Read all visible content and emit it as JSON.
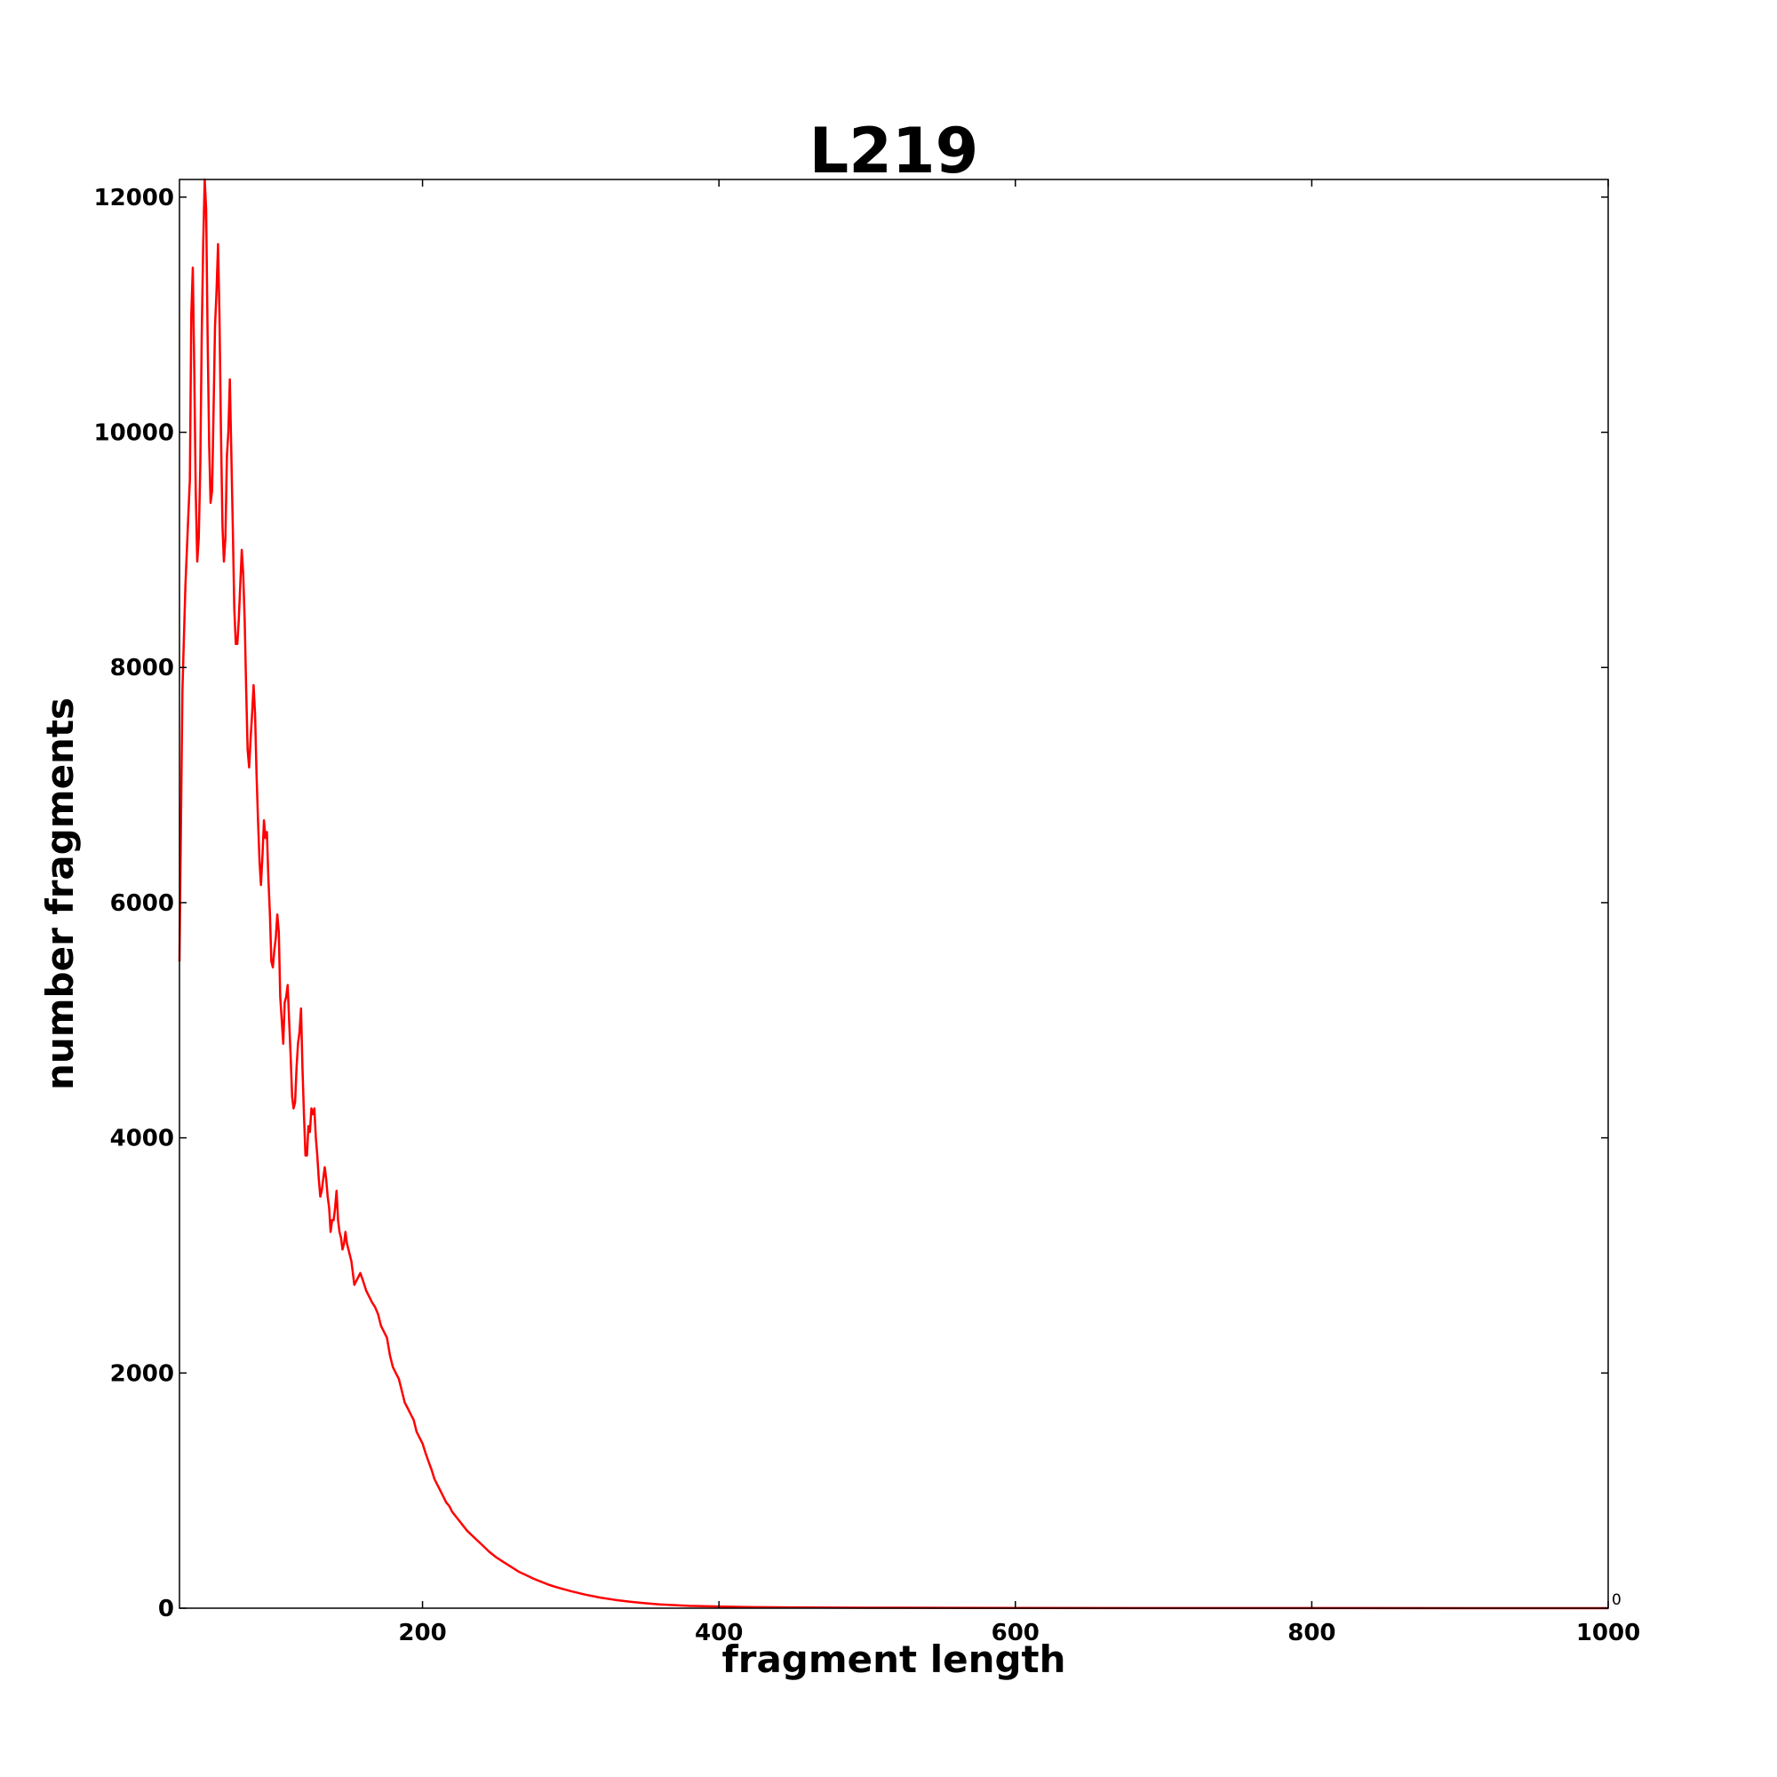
{
  "chart_data": {
    "type": "line",
    "title": "L219",
    "xlabel": "fragment length",
    "ylabel": "number fragments",
    "xlim": [
      36,
      1000
    ],
    "ylim": [
      0,
      12150
    ],
    "xticks": [
      200,
      400,
      600,
      800,
      1000
    ],
    "yticks": [
      0,
      2000,
      4000,
      6000,
      8000,
      10000,
      12000
    ],
    "axis_offset_label": "0",
    "grid": false,
    "legend": "none",
    "series": [
      {
        "color": "#ff0000",
        "points": [
          [
            36,
            5500
          ],
          [
            38,
            7800
          ],
          [
            40,
            8700
          ],
          [
            42,
            9300
          ],
          [
            43,
            9600
          ],
          [
            44,
            11000
          ],
          [
            45,
            11400
          ],
          [
            46,
            10500
          ],
          [
            47,
            9500
          ],
          [
            48,
            8900
          ],
          [
            49,
            9100
          ],
          [
            50,
            9700
          ],
          [
            51,
            10800
          ],
          [
            52,
            11600
          ],
          [
            53,
            12150
          ],
          [
            54,
            11900
          ],
          [
            55,
            10800
          ],
          [
            56,
            9900
          ],
          [
            57,
            9400
          ],
          [
            58,
            9500
          ],
          [
            59,
            10200
          ],
          [
            60,
            10900
          ],
          [
            61,
            11200
          ],
          [
            62,
            11600
          ],
          [
            63,
            11000
          ],
          [
            64,
            10000
          ],
          [
            65,
            9200
          ],
          [
            66,
            8900
          ],
          [
            67,
            9100
          ],
          [
            68,
            9800
          ],
          [
            69,
            10000
          ],
          [
            70,
            10450
          ],
          [
            71,
            9800
          ],
          [
            72,
            9200
          ],
          [
            73,
            8500
          ],
          [
            74,
            8200
          ],
          [
            75,
            8200
          ],
          [
            76,
            8400
          ],
          [
            77,
            8700
          ],
          [
            78,
            9000
          ],
          [
            79,
            8800
          ],
          [
            80,
            8400
          ],
          [
            81,
            7800
          ],
          [
            82,
            7300
          ],
          [
            83,
            7150
          ],
          [
            84,
            7400
          ],
          [
            85,
            7600
          ],
          [
            86,
            7850
          ],
          [
            87,
            7600
          ],
          [
            88,
            7100
          ],
          [
            89,
            6700
          ],
          [
            90,
            6350
          ],
          [
            91,
            6150
          ],
          [
            92,
            6400
          ],
          [
            93,
            6700
          ],
          [
            94,
            6550
          ],
          [
            95,
            6600
          ],
          [
            96,
            6200
          ],
          [
            97,
            5900
          ],
          [
            98,
            5500
          ],
          [
            99,
            5450
          ],
          [
            100,
            5600
          ],
          [
            101,
            5700
          ],
          [
            102,
            5900
          ],
          [
            103,
            5750
          ],
          [
            104,
            5200
          ],
          [
            105,
            5000
          ],
          [
            106,
            4800
          ],
          [
            107,
            5150
          ],
          [
            108,
            5200
          ],
          [
            109,
            5300
          ],
          [
            110,
            5000
          ],
          [
            111,
            4700
          ],
          [
            112,
            4350
          ],
          [
            113,
            4250
          ],
          [
            114,
            4300
          ],
          [
            115,
            4600
          ],
          [
            116,
            4800
          ],
          [
            117,
            4900
          ],
          [
            118,
            5100
          ],
          [
            119,
            4600
          ],
          [
            120,
            4200
          ],
          [
            121,
            3850
          ],
          [
            122,
            3850
          ],
          [
            123,
            4100
          ],
          [
            124,
            4050
          ],
          [
            125,
            4250
          ],
          [
            126,
            4200
          ],
          [
            127,
            4250
          ],
          [
            128,
            4000
          ],
          [
            129,
            3850
          ],
          [
            130,
            3650
          ],
          [
            131,
            3500
          ],
          [
            132,
            3550
          ],
          [
            133,
            3650
          ],
          [
            134,
            3750
          ],
          [
            135,
            3650
          ],
          [
            136,
            3500
          ],
          [
            137,
            3400
          ],
          [
            138,
            3200
          ],
          [
            139,
            3300
          ],
          [
            140,
            3300
          ],
          [
            141,
            3400
          ],
          [
            142,
            3550
          ],
          [
            143,
            3300
          ],
          [
            144,
            3200
          ],
          [
            145,
            3150
          ],
          [
            146,
            3050
          ],
          [
            147,
            3100
          ],
          [
            148,
            3200
          ],
          [
            149,
            3100
          ],
          [
            150,
            3050
          ],
          [
            152,
            2950
          ],
          [
            154,
            2750
          ],
          [
            156,
            2800
          ],
          [
            158,
            2850
          ],
          [
            160,
            2780
          ],
          [
            162,
            2700
          ],
          [
            164,
            2650
          ],
          [
            166,
            2600
          ],
          [
            168,
            2560
          ],
          [
            170,
            2500
          ],
          [
            172,
            2400
          ],
          [
            174,
            2350
          ],
          [
            176,
            2300
          ],
          [
            178,
            2150
          ],
          [
            180,
            2050
          ],
          [
            182,
            2000
          ],
          [
            184,
            1950
          ],
          [
            186,
            1850
          ],
          [
            188,
            1750
          ],
          [
            190,
            1700
          ],
          [
            192,
            1650
          ],
          [
            194,
            1600
          ],
          [
            196,
            1500
          ],
          [
            198,
            1450
          ],
          [
            200,
            1400
          ],
          [
            202,
            1320
          ],
          [
            204,
            1250
          ],
          [
            206,
            1180
          ],
          [
            208,
            1100
          ],
          [
            210,
            1050
          ],
          [
            212,
            1000
          ],
          [
            214,
            950
          ],
          [
            216,
            900
          ],
          [
            218,
            870
          ],
          [
            220,
            820
          ],
          [
            225,
            740
          ],
          [
            230,
            660
          ],
          [
            235,
            600
          ],
          [
            240,
            540
          ],
          [
            245,
            480
          ],
          [
            250,
            430
          ],
          [
            255,
            390
          ],
          [
            260,
            350
          ],
          [
            265,
            310
          ],
          [
            270,
            280
          ],
          [
            275,
            250
          ],
          [
            280,
            225
          ],
          [
            285,
            200
          ],
          [
            290,
            180
          ],
          [
            300,
            145
          ],
          [
            310,
            115
          ],
          [
            320,
            90
          ],
          [
            330,
            70
          ],
          [
            340,
            55
          ],
          [
            350,
            42
          ],
          [
            360,
            32
          ],
          [
            380,
            20
          ],
          [
            400,
            14
          ],
          [
            420,
            10
          ],
          [
            450,
            7
          ],
          [
            500,
            4
          ],
          [
            550,
            3
          ],
          [
            600,
            2
          ],
          [
            700,
            1
          ],
          [
            800,
            1
          ],
          [
            900,
            0
          ],
          [
            1000,
            0
          ]
        ]
      }
    ]
  }
}
